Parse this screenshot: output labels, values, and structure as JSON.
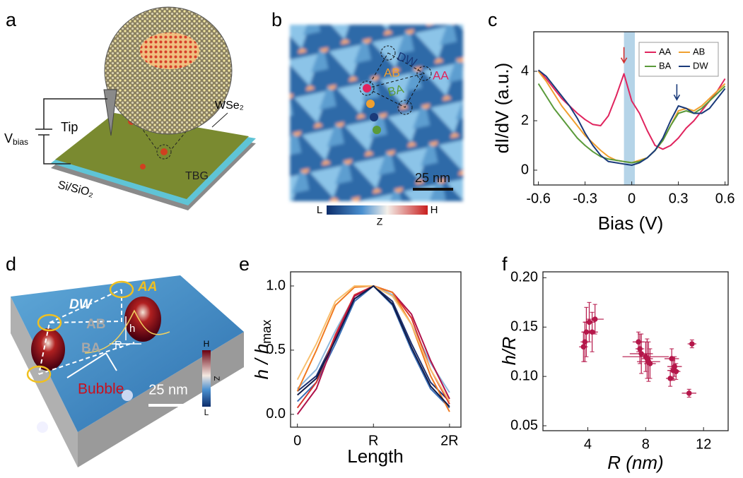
{
  "panels": {
    "a": {
      "label": "a",
      "v_main": "V",
      "v_sub": "bias",
      "tip": "Tip",
      "top_layer": "WSe₂",
      "sample": "TBG",
      "substrate": "Si/SiO₂"
    },
    "b": {
      "label": "b",
      "dw": "DW",
      "ab": "AB",
      "aa": "AA",
      "ba": "BA",
      "scale": "25 nm",
      "cbar_low": "L",
      "cbar_mid": "Z",
      "cbar_high": "H"
    },
    "d": {
      "label": "d",
      "dw": "DW",
      "aa": "AA",
      "ab": "AB",
      "ba": "BA",
      "h": "h",
      "r": "R",
      "bubble": "Bubble",
      "scale": "25 nm",
      "cbar_high": "H",
      "cbar_mid": "Z",
      "cbar_low": "L"
    }
  },
  "chart_data": [
    {
      "type": "line",
      "label": "c",
      "x_label": "Bias (V)",
      "y_label": "dI/dV (a.u.)",
      "x": [
        -0.6,
        -0.55,
        -0.5,
        -0.45,
        -0.4,
        -0.35,
        -0.3,
        -0.25,
        -0.2,
        -0.15,
        -0.1,
        -0.05,
        0,
        0.05,
        0.1,
        0.15,
        0.2,
        0.25,
        0.3,
        0.35,
        0.4,
        0.45,
        0.5,
        0.55,
        0.6
      ],
      "series": [
        {
          "name": "AA",
          "color": "#e0245e",
          "values": [
            4.05,
            3.7,
            3.3,
            2.9,
            2.6,
            2.3,
            2.05,
            1.85,
            1.8,
            2.2,
            3.0,
            3.9,
            2.8,
            2.3,
            1.6,
            1.0,
            0.85,
            1.0,
            1.3,
            1.7,
            2.0,
            2.4,
            2.8,
            3.2,
            3.7
          ]
        },
        {
          "name": "AB",
          "color": "#f0a030",
          "values": [
            4.0,
            3.6,
            3.1,
            2.6,
            2.2,
            1.8,
            1.4,
            1.1,
            0.8,
            0.55,
            0.4,
            0.35,
            0.3,
            0.4,
            0.5,
            0.8,
            1.2,
            1.8,
            2.4,
            2.5,
            2.4,
            2.6,
            2.9,
            3.2,
            3.5
          ]
        },
        {
          "name": "BA",
          "color": "#5a9a3a",
          "values": [
            3.5,
            3.0,
            2.5,
            2.1,
            1.7,
            1.3,
            1.0,
            0.75,
            0.55,
            0.45,
            0.4,
            0.35,
            0.3,
            0.35,
            0.5,
            0.8,
            1.2,
            1.8,
            2.3,
            2.4,
            2.3,
            2.5,
            2.8,
            3.1,
            3.4
          ]
        },
        {
          "name": "DW",
          "color": "#1a3a7a",
          "values": [
            4.05,
            3.8,
            3.4,
            3.0,
            2.6,
            2.1,
            1.5,
            1.0,
            0.6,
            0.35,
            0.3,
            0.25,
            0.2,
            0.3,
            0.5,
            0.8,
            1.3,
            2.0,
            2.6,
            2.5,
            2.3,
            2.3,
            2.5,
            2.9,
            3.3
          ]
        }
      ],
      "xlim": [
        -0.63,
        0.62
      ],
      "ylim": [
        -0.6,
        5.6
      ],
      "xticks": [
        -0.6,
        -0.3,
        0,
        0.3,
        0.6
      ],
      "yticks": [
        0,
        2,
        4
      ],
      "highlight_span": [
        -0.05,
        0.02
      ],
      "highlight_color": "#a8cce4",
      "arrows": [
        {
          "x": -0.05,
          "y": 4.35,
          "color": "#d03030"
        },
        {
          "x": 0.29,
          "y": 2.85,
          "color": "#1a3a7a"
        }
      ],
      "legend": "upper right",
      "legend_columns": 2
    },
    {
      "type": "line",
      "label": "e",
      "x_label": "Length",
      "y_label": "h / h",
      "y_label_sub": "max",
      "x": [
        0,
        0.25,
        0.5,
        0.75,
        1,
        1.25,
        1.5,
        1.75,
        2
      ],
      "series": [
        {
          "color": "#1c2f6e",
          "values": [
            0.18,
            0.3,
            0.6,
            0.9,
            1.0,
            0.88,
            0.55,
            0.25,
            0.1
          ]
        },
        {
          "color": "#3b6fb6",
          "values": [
            0.1,
            0.25,
            0.55,
            0.88,
            1.0,
            0.85,
            0.5,
            0.2,
            0.05
          ]
        },
        {
          "color": "#8fb8dc",
          "values": [
            0.2,
            0.35,
            0.65,
            0.92,
            1.0,
            0.93,
            0.7,
            0.4,
            0.17
          ]
        },
        {
          "color": "#d8342c",
          "values": [
            0.05,
            0.25,
            0.62,
            0.93,
            1.0,
            0.95,
            0.75,
            0.35,
            0.08
          ]
        },
        {
          "color": "#b0124a",
          "values": [
            0.0,
            0.2,
            0.6,
            0.92,
            1.0,
            0.95,
            0.78,
            0.42,
            0.12
          ]
        },
        {
          "color": "#f07a20",
          "values": [
            0.18,
            0.5,
            0.85,
            0.99,
            1.0,
            0.95,
            0.7,
            0.3,
            0.02
          ]
        },
        {
          "color": "#f8c070",
          "values": [
            0.27,
            0.55,
            0.88,
            1.0,
            1.0,
            0.92,
            0.7,
            0.35,
            0.1
          ]
        },
        {
          "color": "#101c4a",
          "values": [
            0.15,
            0.28,
            0.58,
            0.9,
            1.0,
            0.86,
            0.52,
            0.22,
            0.06
          ]
        }
      ],
      "xlim": [
        -0.09,
        2.15
      ],
      "ylim": [
        -0.1,
        1.11
      ],
      "xticks": [
        0,
        {
          "value": 1,
          "label": "R"
        },
        {
          "value": 2,
          "label": "2R"
        }
      ],
      "yticks": [
        {
          "value": 0,
          "label": "0.0"
        },
        0.5,
        {
          "value": 1,
          "label": "1.0"
        }
      ]
    },
    {
      "type": "scatter",
      "label": "f",
      "x_label": "R (nm)",
      "y_label": "h/R",
      "series": [
        {
          "color": "#b5174a",
          "x": [
            3.7,
            3.9,
            4.1,
            4.3,
            4.5,
            3.8,
            7.5,
            7.7,
            7.6,
            8.0,
            8.2,
            8.3,
            8.1,
            9.8,
            9.7,
            9.9,
            10.1,
            10.0,
            11.2,
            11.0
          ],
          "values": [
            0.13,
            0.145,
            0.155,
            0.145,
            0.158,
            0.135,
            0.135,
            0.123,
            0.128,
            0.12,
            0.115,
            0.113,
            0.118,
            0.118,
            0.098,
            0.106,
            0.105,
            0.11,
            0.133,
            0.083
          ],
          "xerr": [
            0.3,
            0.3,
            0.4,
            0.4,
            0.6,
            0.3,
            0.4,
            0.8,
            0.3,
            1.6,
            0.8,
            0.4,
            0.4,
            0.5,
            0.3,
            0.4,
            0.3,
            0.5,
            0.3,
            0.5
          ],
          "yerr": [
            0.015,
            0.025,
            0.02,
            0.02,
            0.015,
            0.02,
            0.01,
            0.02,
            0.015,
            0.015,
            0.02,
            0.015,
            0.02,
            0.01,
            0.008,
            0.01,
            0.008,
            0.01,
            0.004,
            0.004
          ]
        }
      ],
      "xlim": [
        0.9,
        13.7
      ],
      "ylim": [
        0.045,
        0.206
      ],
      "xticks": [
        4,
        8,
        12
      ],
      "yticks": [
        0.05,
        {
          "value": 0.1,
          "label": "0.10"
        },
        0.15,
        {
          "value": 0.2,
          "label": "0.20"
        }
      ]
    }
  ]
}
